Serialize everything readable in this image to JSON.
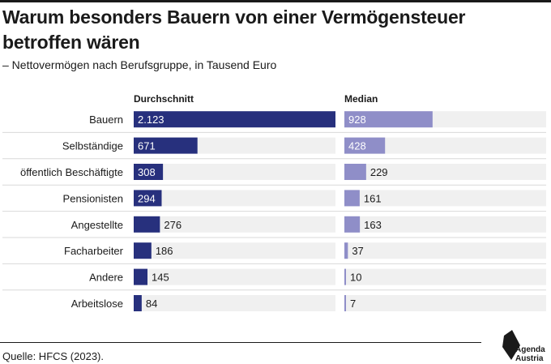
{
  "header": {
    "title": "Warum besonders Bauern von einer Vermögensteuer betroffen wären",
    "subtitle": "– Nettovermögen nach Berufsgruppe, in Tausend Euro"
  },
  "footer": {
    "source": "Quelle: HFCS (2023).",
    "logo_line1": "Agenda",
    "logo_line2": "Austria"
  },
  "colors": {
    "average_bar": "#27307d",
    "median_bar": "#8f8ec8",
    "track": "#f0f0f0",
    "row_divider": "#d9d9d9"
  },
  "chart_data": {
    "type": "bar",
    "orientation": "horizontal",
    "categories": [
      "Bauern",
      "Selbständige",
      "öffentlich Beschäftigte",
      "Pensionisten",
      "Angestellte",
      "Facharbeiter",
      "Andere",
      "Arbeitslose"
    ],
    "series": [
      {
        "name": "Durchschnitt",
        "values": [
          2123,
          671,
          308,
          294,
          276,
          186,
          145,
          84
        ],
        "labels": [
          "2.123",
          "671",
          "308",
          "294",
          "276",
          "186",
          "145",
          "84"
        ],
        "xlim": [
          0,
          2123
        ]
      },
      {
        "name": "Median",
        "values": [
          928,
          428,
          229,
          161,
          163,
          37,
          10,
          7
        ],
        "labels": [
          "928",
          "428",
          "229",
          "161",
          "163",
          "37",
          "10",
          "7"
        ],
        "xlim": [
          0,
          2123
        ]
      }
    ]
  }
}
